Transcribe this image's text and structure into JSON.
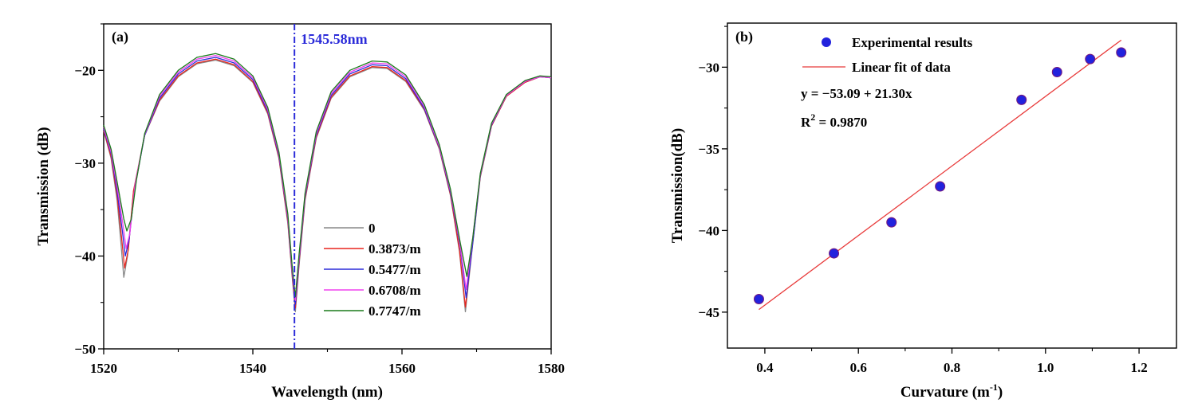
{
  "chart_data": [
    {
      "type": "line",
      "panel_label": "(a)",
      "xlabel": "Wavelength (nm)",
      "ylabel": "Transmission (dB)",
      "xlim": [
        1520,
        1580
      ],
      "ylim": [
        -50,
        -15
      ],
      "xticks": [
        1520,
        1540,
        1560,
        1580
      ],
      "yticks": [
        -50,
        -40,
        -30,
        -20
      ],
      "annotation": {
        "x": 1545.58,
        "text": "1545.58nm"
      },
      "series": [
        {
          "name": "0",
          "color": "#888888",
          "points": [
            [
              1520,
              -26.5
            ],
            [
              1521,
              -29.5
            ],
            [
              1521.8,
              -34
            ],
            [
              1522.3,
              -38.5
            ],
            [
              1522.7,
              -42.3
            ],
            [
              1523.2,
              -40
            ],
            [
              1524,
              -33
            ],
            [
              1525.5,
              -27
            ],
            [
              1527.5,
              -23.3
            ],
            [
              1530,
              -20.7
            ],
            [
              1532.5,
              -19.3
            ],
            [
              1535,
              -18.9
            ],
            [
              1537.5,
              -19.5
            ],
            [
              1540,
              -21.3
            ],
            [
              1542,
              -24.7
            ],
            [
              1543.5,
              -29.5
            ],
            [
              1544.7,
              -36.5
            ],
            [
              1545.3,
              -42.5
            ],
            [
              1545.7,
              -46
            ],
            [
              1546.2,
              -41
            ],
            [
              1547,
              -34
            ],
            [
              1548.5,
              -27.3
            ],
            [
              1550.5,
              -23
            ],
            [
              1553,
              -20.7
            ],
            [
              1556,
              -19.7
            ],
            [
              1558,
              -19.8
            ],
            [
              1560.5,
              -21.2
            ],
            [
              1563,
              -24.3
            ],
            [
              1565,
              -28.5
            ],
            [
              1566.5,
              -33.5
            ],
            [
              1567.7,
              -39.5
            ],
            [
              1568.5,
              -46
            ],
            [
              1569.3,
              -40
            ],
            [
              1570.5,
              -31.5
            ],
            [
              1572,
              -26
            ],
            [
              1574,
              -22.8
            ],
            [
              1576.5,
              -21.3
            ],
            [
              1578.5,
              -20.7
            ],
            [
              1580,
              -20.8
            ]
          ]
        },
        {
          "name": "0.3873/m",
          "color": "#e8251f",
          "points": [
            [
              1520,
              -26.5
            ],
            [
              1521,
              -29.3
            ],
            [
              1521.8,
              -33.5
            ],
            [
              1522.4,
              -38
            ],
            [
              1522.8,
              -41.3
            ],
            [
              1523.3,
              -39.3
            ],
            [
              1524,
              -33
            ],
            [
              1525.5,
              -27
            ],
            [
              1527.5,
              -23.2
            ],
            [
              1530,
              -20.6
            ],
            [
              1532.5,
              -19.2
            ],
            [
              1535,
              -18.8
            ],
            [
              1537.5,
              -19.4
            ],
            [
              1540,
              -21.2
            ],
            [
              1542,
              -24.6
            ],
            [
              1543.5,
              -29.4
            ],
            [
              1544.7,
              -36.3
            ],
            [
              1545.3,
              -42.3
            ],
            [
              1545.7,
              -45.6
            ],
            [
              1546.2,
              -40.7
            ],
            [
              1547,
              -33.8
            ],
            [
              1548.5,
              -27.2
            ],
            [
              1550.5,
              -22.9
            ],
            [
              1553,
              -20.6
            ],
            [
              1556,
              -19.6
            ],
            [
              1558,
              -19.7
            ],
            [
              1560.5,
              -21.1
            ],
            [
              1563,
              -24.2
            ],
            [
              1565,
              -28.4
            ],
            [
              1566.5,
              -33.4
            ],
            [
              1567.7,
              -39.3
            ],
            [
              1568.5,
              -45.5
            ],
            [
              1569.3,
              -39.8
            ],
            [
              1570.5,
              -31.4
            ],
            [
              1572,
              -26
            ],
            [
              1574,
              -22.8
            ],
            [
              1576.5,
              -21.3
            ],
            [
              1578.5,
              -20.7
            ],
            [
              1580,
              -20.8
            ]
          ]
        },
        {
          "name": "0.5477/m",
          "color": "#2b2bd9",
          "points": [
            [
              1520,
              -26.3
            ],
            [
              1521,
              -29
            ],
            [
              1521.8,
              -33
            ],
            [
              1522.5,
              -37.3
            ],
            [
              1522.9,
              -40
            ],
            [
              1523.4,
              -38.3
            ],
            [
              1524.2,
              -32.5
            ],
            [
              1525.5,
              -27
            ],
            [
              1527.5,
              -23
            ],
            [
              1530,
              -20.4
            ],
            [
              1532.5,
              -19
            ],
            [
              1535,
              -18.6
            ],
            [
              1537.5,
              -19.2
            ],
            [
              1540,
              -21
            ],
            [
              1542,
              -24.4
            ],
            [
              1543.5,
              -29.2
            ],
            [
              1544.7,
              -36
            ],
            [
              1545.3,
              -42
            ],
            [
              1545.7,
              -45.2
            ],
            [
              1546.2,
              -40.4
            ],
            [
              1547,
              -33.6
            ],
            [
              1548.5,
              -27
            ],
            [
              1550.5,
              -22.7
            ],
            [
              1553,
              -20.4
            ],
            [
              1556,
              -19.4
            ],
            [
              1558,
              -19.5
            ],
            [
              1560.5,
              -20.9
            ],
            [
              1563,
              -24.1
            ],
            [
              1565,
              -28.3
            ],
            [
              1566.5,
              -33.2
            ],
            [
              1567.8,
              -39
            ],
            [
              1568.6,
              -44.5
            ],
            [
              1569.4,
              -39.2
            ],
            [
              1570.5,
              -31.3
            ],
            [
              1572,
              -25.9
            ],
            [
              1574,
              -22.7
            ],
            [
              1576.5,
              -21.2
            ],
            [
              1578.5,
              -20.7
            ],
            [
              1580,
              -20.8
            ]
          ]
        },
        {
          "name": "0.6708/m",
          "color": "#f040ee",
          "points": [
            [
              1520,
              -26.1
            ],
            [
              1521,
              -28.8
            ],
            [
              1521.8,
              -32.5
            ],
            [
              1522.6,
              -36.7
            ],
            [
              1523,
              -39.2
            ],
            [
              1523.5,
              -37.6
            ],
            [
              1524.2,
              -32.3
            ],
            [
              1525.5,
              -26.9
            ],
            [
              1527.5,
              -22.8
            ],
            [
              1530,
              -20.2
            ],
            [
              1532.5,
              -18.8
            ],
            [
              1535,
              -18.4
            ],
            [
              1537.5,
              -19
            ],
            [
              1540,
              -20.8
            ],
            [
              1542,
              -24.2
            ],
            [
              1543.5,
              -29
            ],
            [
              1544.7,
              -35.8
            ],
            [
              1545.3,
              -41.7
            ],
            [
              1545.7,
              -44.8
            ],
            [
              1546.2,
              -40.1
            ],
            [
              1547,
              -33.4
            ],
            [
              1548.5,
              -26.8
            ],
            [
              1550.5,
              -22.5
            ],
            [
              1553,
              -20.2
            ],
            [
              1556,
              -19.2
            ],
            [
              1558,
              -19.3
            ],
            [
              1560.5,
              -20.7
            ],
            [
              1563,
              -23.9
            ],
            [
              1565,
              -28.2
            ],
            [
              1566.5,
              -33
            ],
            [
              1567.8,
              -38.8
            ],
            [
              1568.6,
              -43.6
            ],
            [
              1569.4,
              -38.6
            ],
            [
              1570.5,
              -31.2
            ],
            [
              1572,
              -25.8
            ],
            [
              1574,
              -22.7
            ],
            [
              1576.5,
              -21.2
            ],
            [
              1578.5,
              -20.7
            ],
            [
              1580,
              -20.8
            ]
          ]
        },
        {
          "name": "0.7747/m",
          "color": "#1a7a1a",
          "points": [
            [
              1520,
              -25.9
            ],
            [
              1521,
              -28.5
            ],
            [
              1521.8,
              -32
            ],
            [
              1522.7,
              -36
            ],
            [
              1523.1,
              -37.3
            ],
            [
              1523.7,
              -36
            ],
            [
              1524.4,
              -31.8
            ],
            [
              1525.5,
              -26.8
            ],
            [
              1527.5,
              -22.6
            ],
            [
              1530,
              -20
            ],
            [
              1532.5,
              -18.6
            ],
            [
              1535,
              -18.2
            ],
            [
              1537.5,
              -18.8
            ],
            [
              1540,
              -20.6
            ],
            [
              1542,
              -24
            ],
            [
              1543.5,
              -28.8
            ],
            [
              1544.7,
              -35.5
            ],
            [
              1545.3,
              -41.4
            ],
            [
              1545.7,
              -44.4
            ],
            [
              1546.2,
              -39.8
            ],
            [
              1547,
              -33.2
            ],
            [
              1548.5,
              -26.6
            ],
            [
              1550.5,
              -22.3
            ],
            [
              1553,
              -20
            ],
            [
              1556,
              -19
            ],
            [
              1558,
              -19.1
            ],
            [
              1560.5,
              -20.5
            ],
            [
              1563,
              -23.7
            ],
            [
              1565,
              -28
            ],
            [
              1566.5,
              -32.8
            ],
            [
              1567.8,
              -38.5
            ],
            [
              1568.7,
              -42.2
            ],
            [
              1569.5,
              -38
            ],
            [
              1570.5,
              -31.1
            ],
            [
              1572,
              -25.7
            ],
            [
              1574,
              -22.6
            ],
            [
              1576.5,
              -21.1
            ],
            [
              1578.5,
              -20.6
            ],
            [
              1580,
              -20.7
            ]
          ]
        }
      ]
    },
    {
      "type": "scatter",
      "panel_label": "(b)",
      "xlabel": "Curvature (m",
      "xlabel_sup": "-1",
      "xlabel_close": ")",
      "ylabel": "Transmission(dB)",
      "xlim": [
        0.32,
        1.28
      ],
      "ylim": [
        -47.2,
        -27.3
      ],
      "xticks": [
        "0.4",
        "0.6",
        "0.8",
        "1.0",
        "1.2"
      ],
      "yticks": [
        "-45",
        "-40",
        "-35",
        "-30"
      ],
      "series": [
        {
          "name": "Experimental results",
          "color": "#2222dd",
          "x": [
            0.3873,
            0.5477,
            0.6708,
            0.7747,
            0.9487,
            1.0247,
            1.0954,
            1.1619
          ],
          "y": [
            -44.2,
            -41.4,
            -39.5,
            -37.3,
            -32.0,
            -30.3,
            -29.5,
            -29.1
          ]
        }
      ],
      "fit": {
        "name": "Linear fit of data",
        "color": "#e83a3a",
        "intercept": -53.09,
        "slope": 21.3,
        "x_range": [
          0.3873,
          1.1619
        ],
        "equation": "y = −53.09 + 21.30x",
        "r2_prefix": "R",
        "r2_sup": "2",
        "r2_value": " = 0.9870"
      }
    }
  ]
}
